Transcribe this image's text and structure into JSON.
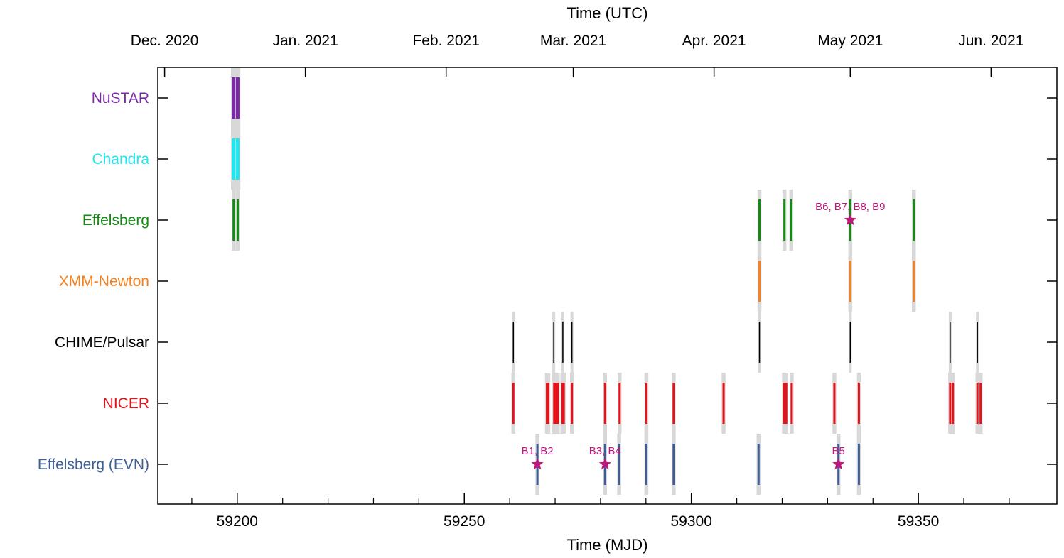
{
  "chart_data": {
    "type": "timeline",
    "xlabel": "Time (MJD)",
    "x2label": "Time (UTC)",
    "xlim": [
      59182.5,
      59380.5
    ],
    "x_ticks": [
      "59200",
      "59250",
      "59300",
      "59350"
    ],
    "x_tick_values": [
      59200,
      59250,
      59300,
      59350
    ],
    "x_minor_tick_values": [
      59190,
      59210,
      59220,
      59230,
      59240,
      59260,
      59270,
      59280,
      59290,
      59310,
      59320,
      59330,
      59340,
      59360,
      59370
    ],
    "top_ticks": [
      {
        "label": "Dec. 2020",
        "mjd": 59184
      },
      {
        "label": "Jan. 2021",
        "mjd": 59215
      },
      {
        "label": "Feb. 2021",
        "mjd": 59246
      },
      {
        "label": "Mar. 2021",
        "mjd": 59274
      },
      {
        "label": "Apr. 2021",
        "mjd": 59305
      },
      {
        "label": "May 2021",
        "mjd": 59335
      },
      {
        "label": "Jun. 2021",
        "mjd": 59366
      }
    ],
    "shade_color": "#d8d8d8",
    "marker_color": "#c0157a",
    "rows": [
      {
        "name": "NuSTAR",
        "color": "#7b2aa6",
        "bar": "wide",
        "mjd": [
          59199.2,
          59200.1
        ]
      },
      {
        "name": "Chandra",
        "color": "#22e6ee",
        "bar": "wide",
        "mjd": [
          59199.2,
          59200.1
        ]
      },
      {
        "name": "Effelsberg",
        "color": "#138a13",
        "bar": "normal",
        "mjd": [
          59199.2,
          59200.1,
          59315.0,
          59320.5,
          59322.0,
          59335.0,
          59349.0
        ]
      },
      {
        "name": "XMM-Newton",
        "color": "#f5821f",
        "bar": "normal",
        "mjd": [
          59315.0,
          59335.0,
          59349.0
        ]
      },
      {
        "name": "CHIME/Pulsar",
        "color": "#000000",
        "bar": "thin",
        "mjd": [
          59260.8,
          59269.7,
          59271.7,
          59273.7,
          59315.0,
          59335.0,
          59357.0,
          59363.0
        ]
      },
      {
        "name": "NICER",
        "color": "#e2141b",
        "bar": "normal",
        "mjd": [
          59260.8,
          59268.2,
          59268.5,
          59269.8,
          59270.2,
          59270.6,
          59271.6,
          59271.9,
          59273.7,
          59281.0,
          59284.2,
          59290.1,
          59296.1,
          59307.1,
          59320.4,
          59320.9,
          59322.1,
          59331.5,
          59336.9,
          59357.0,
          59357.6,
          59363.0,
          59363.7
        ]
      },
      {
        "name": "Effelsberg (EVN)",
        "color": "#3f5f94",
        "bar": "normal",
        "mjd": [
          59266.1,
          59281.0,
          59284.1,
          59290.1,
          59296.1,
          59314.8,
          59332.4,
          59336.9
        ]
      }
    ],
    "bursts": [
      {
        "row": "Effelsberg",
        "mjd": 59335.0,
        "label": "B6, B7, B8, B9"
      },
      {
        "row": "Effelsberg (EVN)",
        "mjd": 59266.1,
        "label": "B1, B2"
      },
      {
        "row": "Effelsberg (EVN)",
        "mjd": 59281.0,
        "label": "B3, B4"
      },
      {
        "row": "Effelsberg (EVN)",
        "mjd": 59332.4,
        "label": "B5"
      }
    ]
  }
}
